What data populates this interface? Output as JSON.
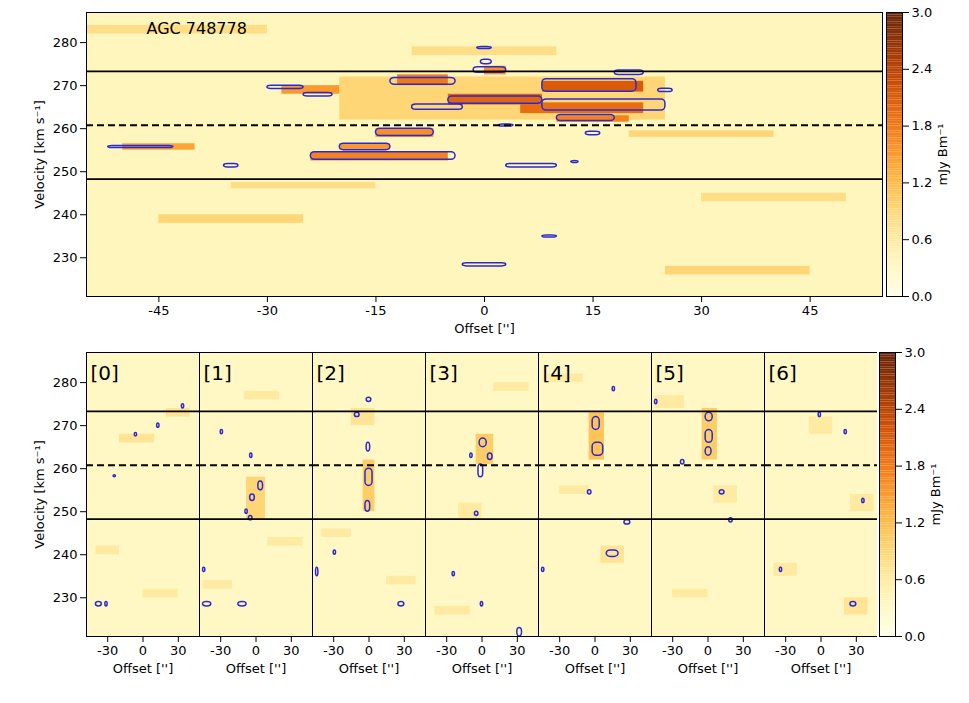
{
  "chart_data": [
    {
      "type": "heatmap",
      "title": "AGC 748778",
      "xlabel": "Offset ['']",
      "ylabel": "Velocity [km s⁻¹]",
      "xlim": [
        -55,
        55
      ],
      "ylim": [
        221,
        287
      ],
      "xticks": [
        -45,
        -30,
        -15,
        0,
        15,
        30,
        45
      ],
      "yticks": [
        230,
        240,
        250,
        260,
        270,
        280
      ],
      "reference_lines": [
        {
          "value": 273.3,
          "line_style": "solid"
        },
        {
          "value": 248.3,
          "line_style": "solid"
        },
        {
          "value": 260.8,
          "line_style": "dashed"
        }
      ],
      "colorbar": {
        "label": "mJy Bm⁻¹",
        "range": [
          0,
          3
        ],
        "ticks": [
          {
            "value": 0,
            "label": "0.0"
          },
          {
            "value": 0.6,
            "label": "0.6"
          },
          {
            "value": 1.2,
            "label": "1.2"
          },
          {
            "value": 1.8,
            "label": "1.8"
          },
          {
            "value": 2.4,
            "label": "2.4"
          },
          {
            "value": 3,
            "label": "3.0"
          }
        ]
      },
      "cells": [
        [
          -55,
          55,
          221,
          287,
          0.35
        ],
        [
          -20,
          25,
          262,
          272,
          0.9
        ],
        [
          -5,
          8,
          265.5,
          268,
          2.0
        ],
        [
          8,
          22,
          268.5,
          271,
          2.1
        ],
        [
          5,
          22,
          263.5,
          266,
          1.9
        ],
        [
          10,
          20,
          261.5,
          263,
          1.7
        ],
        [
          -12,
          -5,
          270,
          272.5,
          1.8
        ],
        [
          -24,
          -5,
          252.5,
          254.5,
          1.7
        ],
        [
          -15,
          -7,
          258,
          260,
          1.6
        ],
        [
          -20,
          -13,
          255,
          256.5,
          1.5
        ],
        [
          -28,
          -20,
          268,
          270,
          1.5
        ],
        [
          0,
          3,
          272.5,
          274.5,
          1.6
        ],
        [
          -50,
          -40,
          255,
          256.5,
          1.4
        ],
        [
          -45,
          -25,
          238,
          240,
          0.9
        ],
        [
          25,
          45,
          226,
          228,
          0.9
        ],
        [
          -10,
          10,
          277,
          279,
          0.8
        ],
        [
          30,
          50,
          243,
          245,
          0.8
        ],
        [
          -55,
          -30,
          282,
          284,
          0.8
        ],
        [
          20,
          40,
          258,
          259.5,
          0.9
        ],
        [
          -35,
          -15,
          246,
          247.5,
          0.8
        ]
      ],
      "contours": [
        [
          -1,
          1,
          278.5,
          279
        ],
        [
          -0.5,
          1,
          275,
          276
        ],
        [
          -1.5,
          3,
          273,
          274.3
        ],
        [
          -13,
          -4,
          270.2,
          271.8
        ],
        [
          -30,
          -25,
          269.2,
          270
        ],
        [
          -25,
          -21,
          267.5,
          268.3
        ],
        [
          -5,
          8,
          265.8,
          267.5
        ],
        [
          -10,
          -3,
          264.4,
          265.6
        ],
        [
          8,
          21,
          268.6,
          271.5
        ],
        [
          18,
          22,
          272.5,
          273.5
        ],
        [
          8,
          25,
          264.2,
          266.8
        ],
        [
          10,
          18,
          261.8,
          263.2
        ],
        [
          24,
          26,
          268.5,
          269.3
        ],
        [
          2,
          4,
          260.5,
          261
        ],
        [
          -15,
          -7,
          258.3,
          260
        ],
        [
          -20,
          -13,
          255,
          256.5
        ],
        [
          -24,
          -4,
          252.8,
          254.5
        ],
        [
          -52,
          -43,
          255.5,
          256
        ],
        [
          -36,
          -34,
          251,
          251.8
        ],
        [
          3,
          10,
          251,
          251.8
        ],
        [
          14,
          16,
          258.5,
          259.3
        ],
        [
          12,
          13,
          252,
          252.5
        ],
        [
          8,
          10,
          234.7,
          235.2
        ],
        [
          -3,
          3,
          228,
          228.7
        ]
      ]
    },
    {
      "type": "heatmap",
      "xlabel": "Offset ['']",
      "ylabel": "Velocity [km s⁻¹]",
      "xlim": [
        -48,
        48
      ],
      "ylim": [
        221,
        287
      ],
      "xticks": [
        -30,
        0,
        30
      ],
      "yticks": [
        230,
        240,
        250,
        260,
        270,
        280
      ],
      "reference_lines": [
        {
          "value": 273.3,
          "line_style": "solid"
        },
        {
          "value": 248.3,
          "line_style": "solid"
        },
        {
          "value": 260.8,
          "line_style": "dashed"
        }
      ],
      "colorbar": {
        "label": "mJy Bm⁻¹",
        "range": [
          0,
          3
        ],
        "ticks": [
          {
            "value": 0,
            "label": "0.0"
          },
          {
            "value": 0.6,
            "label": "0.6"
          },
          {
            "value": 1.2,
            "label": "1.2"
          },
          {
            "value": 1.8,
            "label": "1.8"
          },
          {
            "value": 2.4,
            "label": "2.4"
          },
          {
            "value": 3,
            "label": "3.0"
          }
        ]
      },
      "panels": [
        {
          "title": "[0]",
          "cells": [
            [
              -48,
              48,
              221,
              287,
              0.3
            ],
            [
              -20,
              10,
              266,
              268,
              0.7
            ],
            [
              20,
              40,
              272,
              274,
              0.7
            ],
            [
              -40,
              -20,
              240,
              242,
              0.6
            ],
            [
              0,
              30,
              230,
              232,
              0.6
            ]
          ],
          "contours": [
            [
              -7,
              -5,
              267.5,
              268.3
            ],
            [
              12,
              14,
              269.5,
              270.5
            ],
            [
              33,
              35,
              274,
              275
            ],
            [
              -25,
              -23,
              258,
              258.5
            ],
            [
              -40,
              -35,
              228,
              229
            ],
            [
              -32,
              -30,
              228,
              229
            ]
          ]
        },
        {
          "title": "[1]",
          "cells": [
            [
              -48,
              48,
              221,
              287,
              0.3
            ],
            [
              -8,
              8,
              248,
              258,
              0.9
            ],
            [
              -10,
              20,
              276,
              278,
              0.6
            ],
            [
              -45,
              -20,
              232,
              234,
              0.6
            ],
            [
              10,
              40,
              242,
              244,
              0.6
            ]
          ],
          "contours": [
            [
              2,
              6,
              255,
              257
            ],
            [
              -5,
              -1,
              252.5,
              254
            ],
            [
              -9,
              -7,
              249.5,
              250.5
            ],
            [
              -6,
              -3,
              248,
              249
            ],
            [
              -45,
              -43,
              236,
              237
            ],
            [
              -45,
              -38,
              228,
              229
            ],
            [
              -15,
              -8,
              228,
              229
            ],
            [
              -30,
              -28,
              268,
              269
            ],
            [
              -5,
              -3,
              262.5,
              263.5
            ]
          ]
        },
        {
          "title": "[2]",
          "cells": [
            [
              -48,
              48,
              221,
              287,
              0.3
            ],
            [
              -5,
              5,
              250,
              262,
              1.0
            ],
            [
              -15,
              5,
              270,
              274,
              0.7
            ],
            [
              -40,
              -15,
              244,
              246,
              0.6
            ],
            [
              15,
              40,
              233,
              235,
              0.6
            ]
          ],
          "contours": [
            [
              -3,
              3,
              256,
              260
            ],
            [
              -3,
              1,
              250,
              252.5
            ],
            [
              -12,
              -8,
              272,
              273
            ],
            [
              -2,
              2,
              275.5,
              276.5
            ],
            [
              -2,
              1,
              264,
              266
            ],
            [
              -45,
              -43,
              235,
              237
            ],
            [
              25,
              30,
              228,
              229
            ],
            [
              -30,
              -28,
              240,
              241
            ]
          ]
        },
        {
          "title": "[3]",
          "cells": [
            [
              -48,
              48,
              221,
              287,
              0.3
            ],
            [
              -5,
              10,
              261,
              268,
              1.0
            ],
            [
              -20,
              0,
              248,
              252,
              0.6
            ],
            [
              10,
              40,
              278,
              280,
              0.6
            ],
            [
              -40,
              -10,
              226,
              228,
              0.6
            ]
          ],
          "contours": [
            [
              -2,
              4,
              265,
              267
            ],
            [
              5,
              9,
              262,
              263.5
            ],
            [
              -3,
              1,
              258,
              261
            ],
            [
              -10,
              -8,
              262.5,
              263.5
            ],
            [
              -6,
              -3,
              249,
              250
            ],
            [
              -1,
              1,
              228,
              229
            ],
            [
              30,
              34,
              221,
              223
            ],
            [
              -25,
              -23,
              235,
              236
            ]
          ]
        },
        {
          "title": "[4]",
          "cells": [
            [
              -48,
              48,
              221,
              287,
              0.3
            ],
            [
              -5,
              8,
              262,
              273,
              1.1
            ],
            [
              5,
              25,
              238,
              242,
              0.7
            ],
            [
              -30,
              -5,
              254,
              256,
              0.6
            ],
            [
              -40,
              -10,
              280,
              282,
              0.6
            ]
          ],
          "contours": [
            [
              -2,
              4,
              269,
              272
            ],
            [
              -2,
              7,
              263,
              266
            ],
            [
              10,
              20,
              239.5,
              241
            ],
            [
              -6,
              -3,
              254,
              255
            ],
            [
              15,
              17,
              278,
              279
            ],
            [
              -45,
              -43,
              236,
              237
            ],
            [
              25,
              30,
              247,
              248
            ]
          ]
        },
        {
          "title": "[5]",
          "cells": [
            [
              -48,
              48,
              221,
              287,
              0.3
            ],
            [
              -5,
              8,
              262,
              274,
              1.0
            ],
            [
              5,
              25,
              252,
              256,
              0.6
            ],
            [
              -45,
              -20,
              274,
              277,
              0.6
            ],
            [
              -30,
              0,
              230,
              232,
              0.6
            ]
          ],
          "contours": [
            [
              -2,
              4,
              271,
              273
            ],
            [
              -2,
              4,
              266,
              269
            ],
            [
              -2,
              3,
              263,
              265
            ],
            [
              10,
              14,
              254,
              255
            ],
            [
              18,
              21,
              247.5,
              248.5
            ],
            [
              -45,
              -43,
              275,
              276
            ],
            [
              -23,
              -20,
              261,
              262
            ]
          ]
        },
        {
          "title": "[6]",
          "cells": [
            [
              -48,
              48,
              221,
              287,
              0.3
            ],
            [
              -10,
              10,
              268,
              272,
              0.6
            ],
            [
              20,
              40,
              226,
              230,
              0.7
            ],
            [
              -40,
              -20,
              235,
              238,
              0.6
            ],
            [
              25,
              45,
              250,
              254,
              0.6
            ]
          ],
          "contours": [
            [
              25,
              30,
              228,
              229
            ],
            [
              -35,
              -33,
              236,
              237
            ],
            [
              20,
              22,
              268,
              269
            ],
            [
              -2,
              0,
              272,
              273
            ],
            [
              35,
              37,
              252,
              253
            ]
          ]
        }
      ]
    }
  ]
}
